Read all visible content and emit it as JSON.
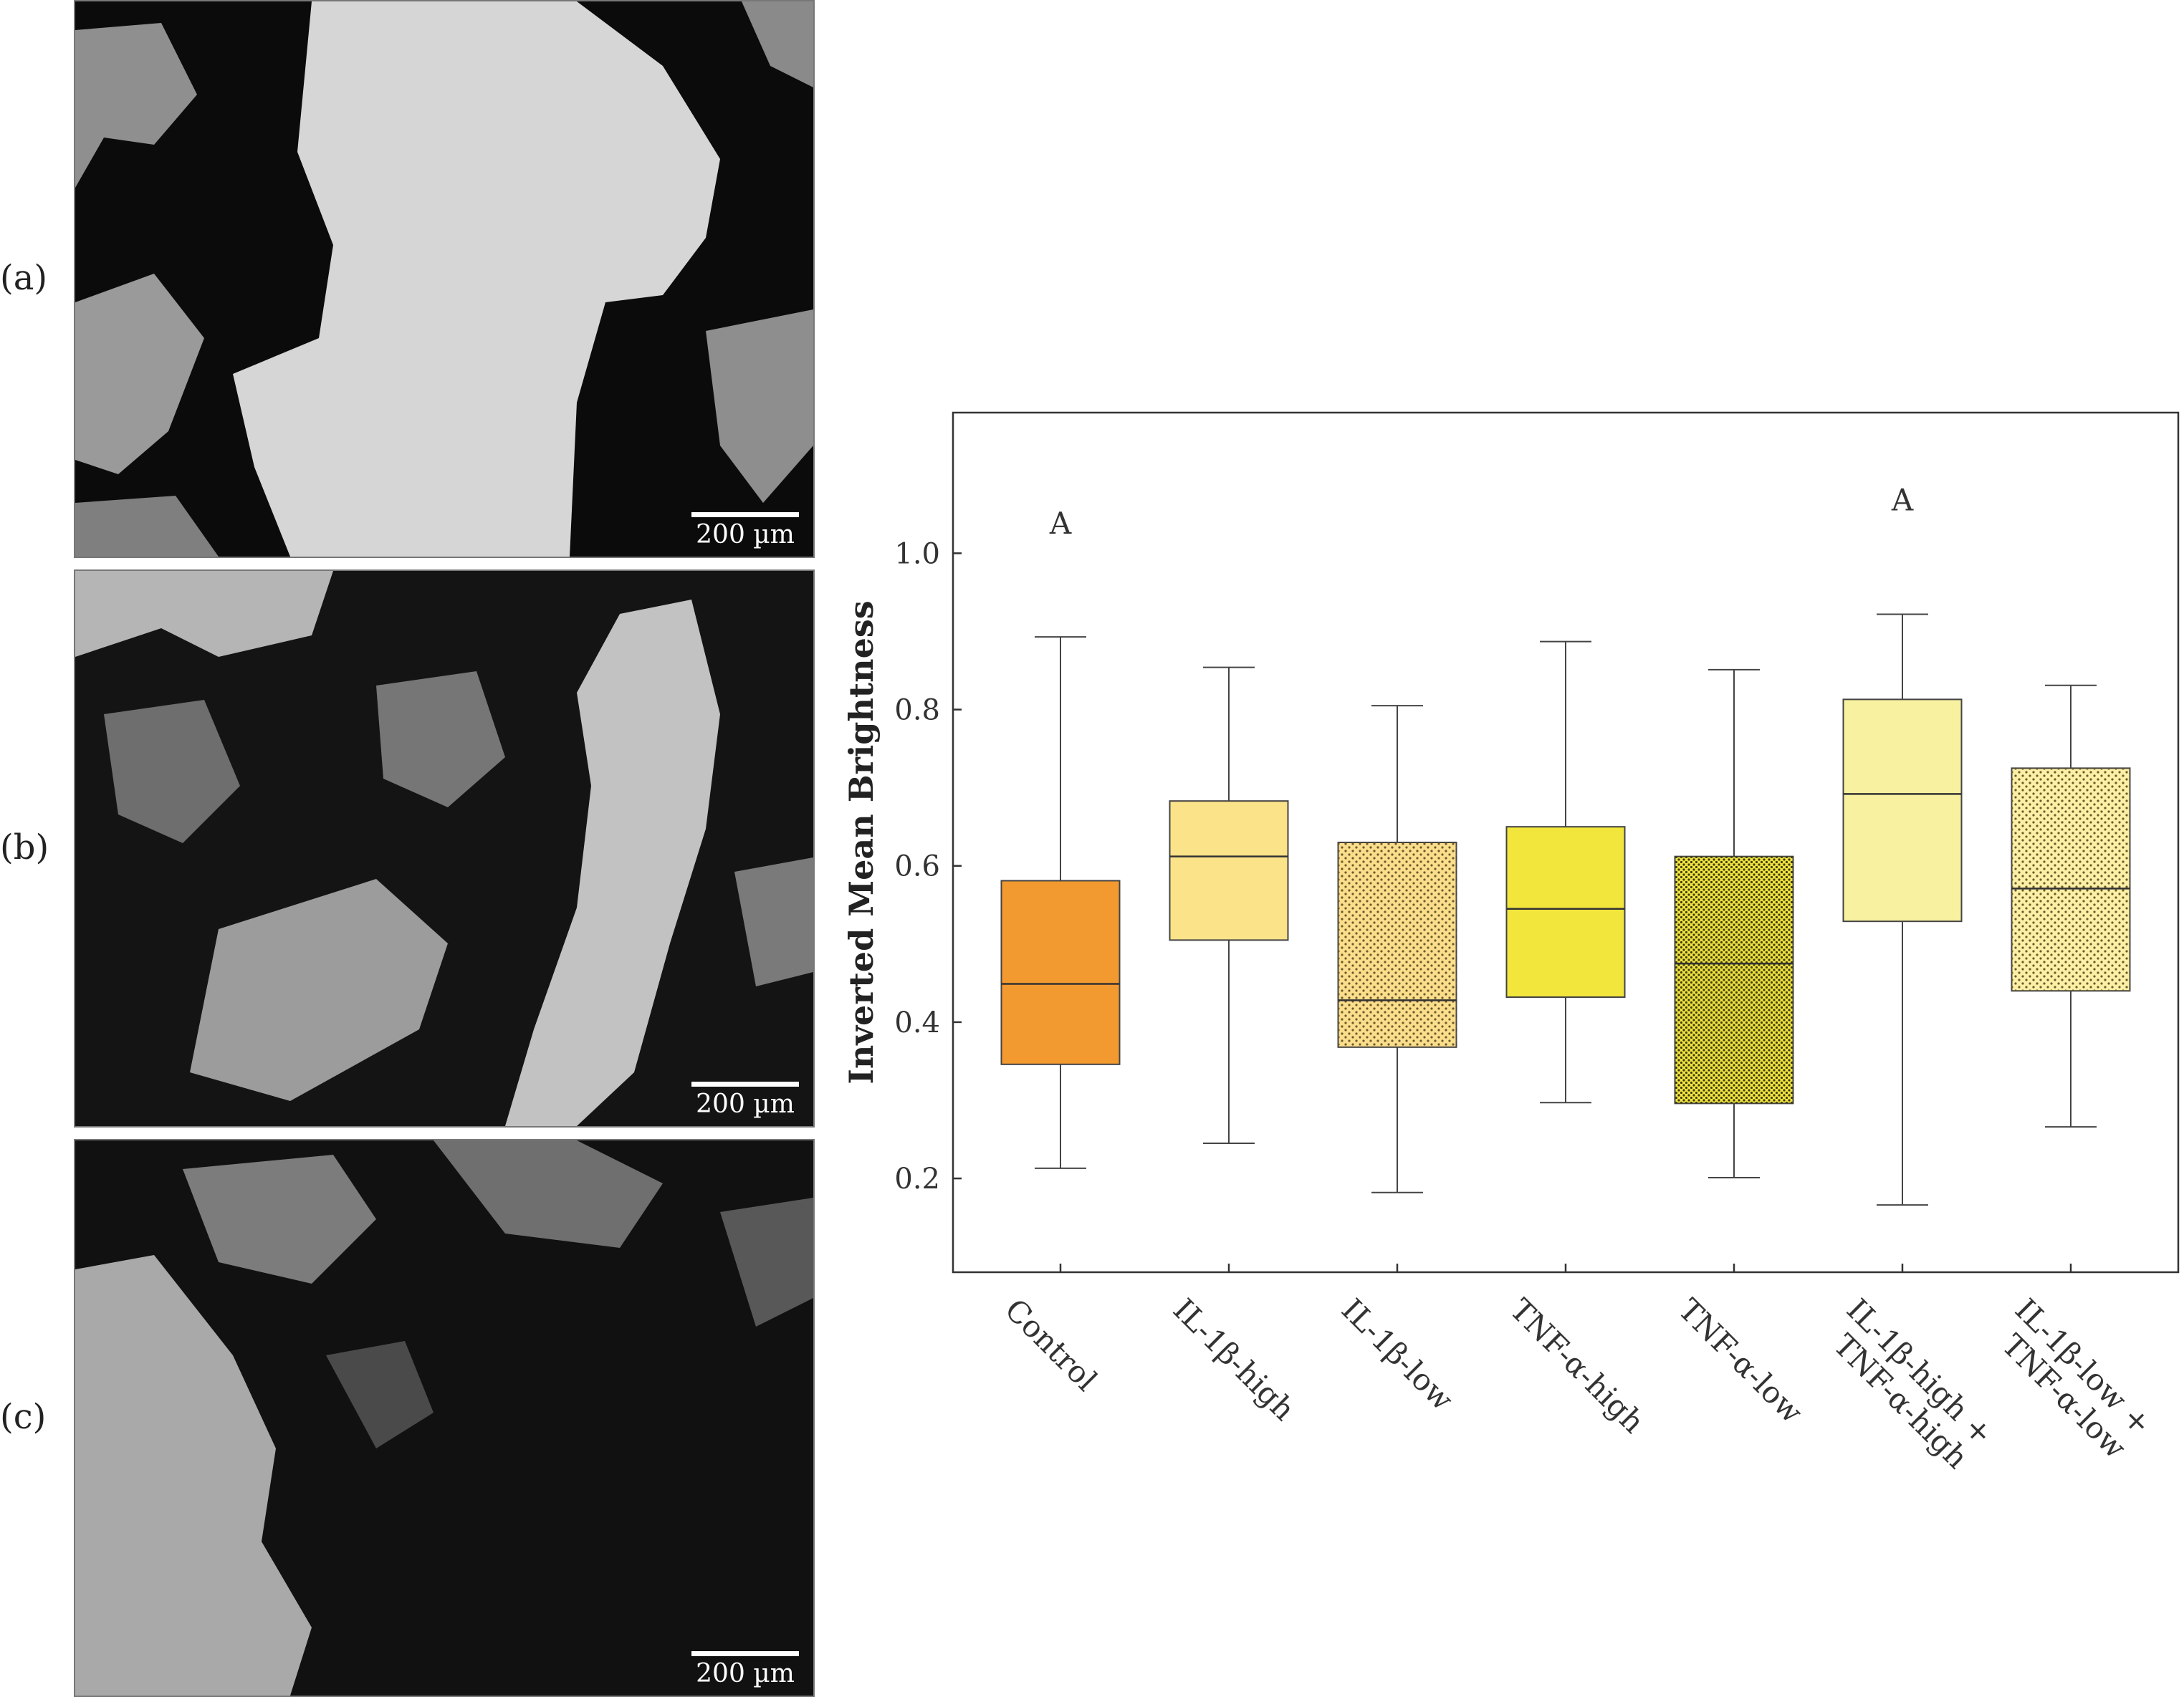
{
  "panels": [
    {
      "label": "(a)",
      "scale_bar": "200 µm",
      "brightness": "high"
    },
    {
      "label": "(b)",
      "scale_bar": "200 µm",
      "brightness": "medium"
    },
    {
      "label": "(c)",
      "scale_bar": "200 µm",
      "brightness": "low"
    }
  ],
  "chart_data": {
    "type": "box",
    "ylabel": "Inverted Mean Brightness",
    "xlabel": "",
    "ylim": [
      0.08,
      1.18
    ],
    "yticks": [
      "0.2",
      "0.4",
      "0.6",
      "0.8",
      "1.0"
    ],
    "categories": [
      [
        "Control"
      ],
      [
        "IL-1β-high"
      ],
      [
        "IL-1β-low"
      ],
      [
        "TNF-α-high"
      ],
      [
        "TNF-α-low"
      ],
      [
        "IL-1β-high +",
        "TNF-α-high"
      ],
      [
        "IL-1β-low +",
        "TNF-α-low"
      ]
    ],
    "boxes": [
      {
        "min": 0.213,
        "q1": 0.346,
        "median": 0.449,
        "q3": 0.581,
        "max": 0.893,
        "color": "#F29A30",
        "pattern": "none",
        "letter": "A"
      },
      {
        "min": 0.245,
        "q1": 0.505,
        "median": 0.612,
        "q3": 0.683,
        "max": 0.854,
        "color": "#FBE38A",
        "pattern": "none",
        "letter": ""
      },
      {
        "min": 0.182,
        "q1": 0.368,
        "median": 0.428,
        "q3": 0.63,
        "max": 0.805,
        "color": "#FBDE8C",
        "pattern": "dots",
        "letter": ""
      },
      {
        "min": 0.297,
        "q1": 0.432,
        "median": 0.545,
        "q3": 0.65,
        "max": 0.887,
        "color": "#F2E63C",
        "pattern": "none",
        "letter": ""
      },
      {
        "min": 0.201,
        "q1": 0.296,
        "median": 0.475,
        "q3": 0.612,
        "max": 0.851,
        "color": "#F0E43E",
        "pattern": "dense-dots",
        "letter": ""
      },
      {
        "min": 0.166,
        "q1": 0.529,
        "median": 0.692,
        "q3": 0.813,
        "max": 0.922,
        "color": "#F8F1A0",
        "pattern": "none",
        "letter": "A"
      },
      {
        "min": 0.266,
        "q1": 0.44,
        "median": 0.571,
        "q3": 0.725,
        "max": 0.831,
        "color": "#FBF0A6",
        "pattern": "dots",
        "letter": ""
      }
    ],
    "letter_values": [
      1.025,
      1.055
    ]
  }
}
